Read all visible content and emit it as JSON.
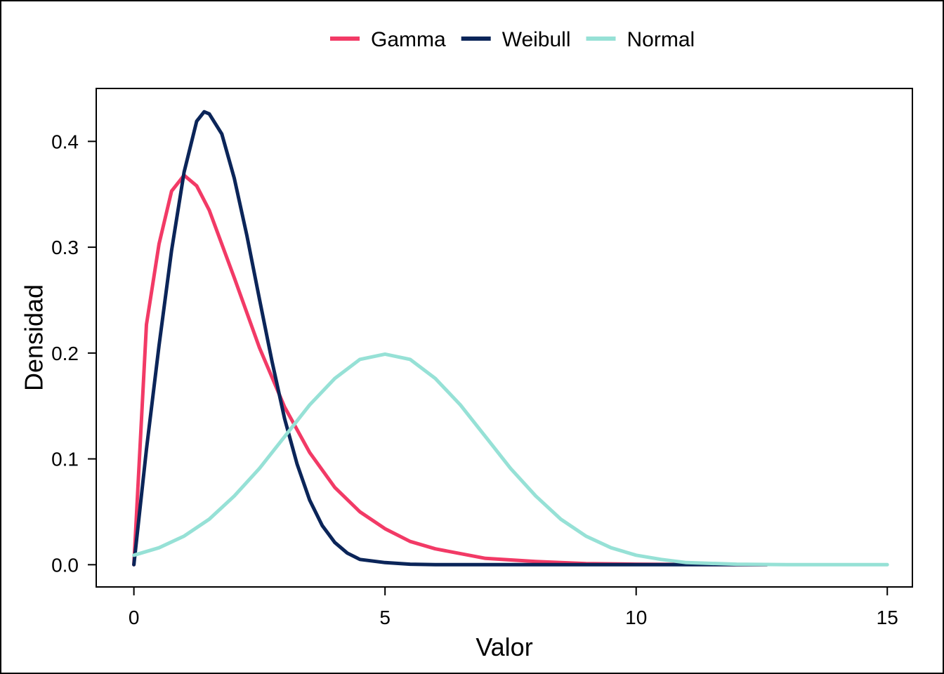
{
  "chart_data": {
    "type": "line",
    "xlabel": "Valor",
    "ylabel": "Densidad",
    "xlim": [
      -0.75,
      15.5
    ],
    "ylim": [
      -0.021,
      0.45
    ],
    "x_ticks": [
      "0",
      "5",
      "10",
      "15"
    ],
    "y_ticks": [
      "0.0",
      "0.1",
      "0.2",
      "0.3",
      "0.4"
    ],
    "legend": {
      "position": "top"
    },
    "series": [
      {
        "name": "Gamma",
        "color": "#F23A66",
        "x": [
          0,
          0.25,
          0.5,
          0.75,
          1.0,
          1.25,
          1.5,
          2.0,
          2.5,
          3.0,
          3.5,
          4.0,
          4.5,
          5.0,
          5.5,
          6.0,
          7.0,
          8.0,
          9.0,
          10.0,
          11.0,
          12.0,
          12.6
        ],
        "values": [
          0.0,
          0.227,
          0.303,
          0.353,
          0.368,
          0.358,
          0.335,
          0.271,
          0.205,
          0.149,
          0.106,
          0.073,
          0.05,
          0.034,
          0.022,
          0.015,
          0.006,
          0.003,
          0.001,
          0.0005,
          0.0002,
          0.0001,
          0.0
        ]
      },
      {
        "name": "Weibull",
        "color": "#0B2559",
        "x": [
          0,
          0.25,
          0.5,
          0.75,
          1.0,
          1.25,
          1.4,
          1.5,
          1.75,
          2.0,
          2.25,
          2.5,
          2.75,
          3.0,
          3.25,
          3.5,
          3.75,
          4.0,
          4.25,
          4.5,
          5.0,
          5.5,
          6.0,
          7.0,
          8.0,
          10.0,
          12.6
        ],
        "values": [
          0.0,
          0.109,
          0.207,
          0.297,
          0.371,
          0.419,
          0.428,
          0.426,
          0.407,
          0.365,
          0.311,
          0.251,
          0.192,
          0.138,
          0.095,
          0.061,
          0.037,
          0.021,
          0.011,
          0.005,
          0.002,
          0.0005,
          0.0001,
          0.0,
          0.0,
          0.0,
          0.0
        ]
      },
      {
        "name": "Normal",
        "color": "#96E1D6",
        "x": [
          0,
          0.5,
          1.0,
          1.5,
          2.0,
          2.5,
          3.0,
          3.5,
          4.0,
          4.5,
          5.0,
          5.5,
          6.0,
          6.5,
          7.0,
          7.5,
          8.0,
          8.5,
          9.0,
          9.5,
          10.0,
          10.5,
          11.0,
          12.0,
          13.0,
          14.0,
          15.0
        ],
        "values": [
          0.009,
          0.016,
          0.027,
          0.043,
          0.065,
          0.091,
          0.121,
          0.151,
          0.176,
          0.194,
          0.199,
          0.194,
          0.176,
          0.151,
          0.121,
          0.091,
          0.065,
          0.043,
          0.027,
          0.016,
          0.009,
          0.005,
          0.002,
          0.0005,
          0.0001,
          0.0,
          0.0
        ]
      }
    ]
  }
}
